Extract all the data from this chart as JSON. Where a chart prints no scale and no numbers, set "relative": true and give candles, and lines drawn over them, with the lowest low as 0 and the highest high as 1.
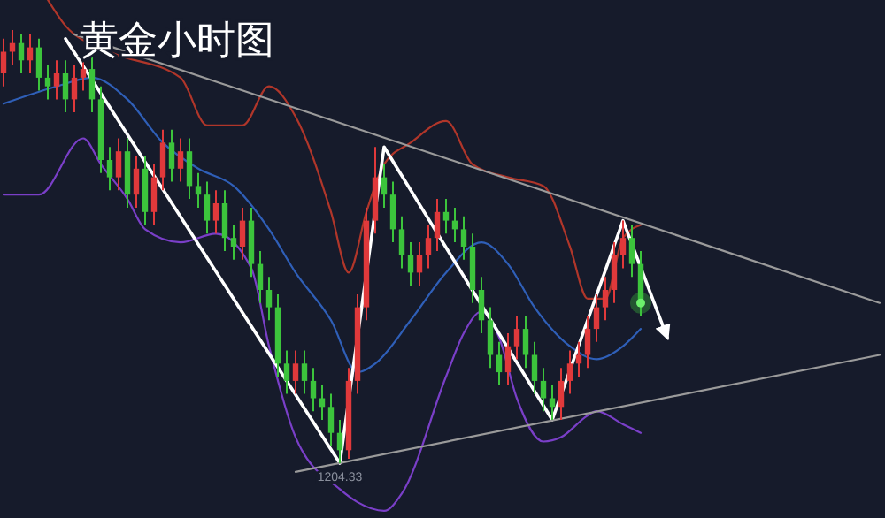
{
  "chart_data": {
    "type": "candlestick",
    "title": "黄金小时图",
    "relative": true,
    "categories": [
      null,
      null,
      null,
      null,
      null,
      null,
      null,
      null,
      null,
      null,
      null,
      null,
      null,
      null,
      null,
      null,
      null,
      null,
      null,
      null,
      null,
      null,
      null,
      null,
      null,
      null,
      null,
      null,
      null,
      null,
      null,
      null,
      null,
      null,
      null,
      null,
      null,
      null,
      null,
      null,
      null,
      null,
      null,
      null,
      null,
      null,
      null,
      null,
      null,
      null,
      null,
      null,
      null,
      null,
      null,
      null,
      null,
      null,
      null,
      null,
      null,
      null,
      null,
      null,
      null,
      null,
      null,
      null,
      null,
      null,
      null,
      null,
      null,
      null,
      null,
      null,
      null,
      null,
      null,
      null,
      null,
      null,
      null,
      null,
      null,
      null,
      null,
      null,
      null,
      null,
      null,
      null,
      null,
      null,
      null,
      null,
      null,
      null,
      null,
      null
    ],
    "ohlc": [
      [
        0.9,
        0.98,
        0.87,
        0.95
      ],
      [
        0.95,
        1.0,
        0.92,
        0.97
      ],
      [
        0.97,
        0.99,
        0.9,
        0.93
      ],
      [
        0.93,
        0.99,
        0.9,
        0.96
      ],
      [
        0.96,
        0.98,
        0.86,
        0.89
      ],
      [
        0.89,
        0.92,
        0.84,
        0.87
      ],
      [
        0.87,
        0.93,
        0.84,
        0.9
      ],
      [
        0.9,
        0.93,
        0.81,
        0.84
      ],
      [
        0.84,
        0.92,
        0.81,
        0.89
      ],
      [
        0.89,
        0.94,
        0.86,
        0.91
      ],
      [
        0.91,
        0.94,
        0.81,
        0.84
      ],
      [
        0.84,
        0.87,
        0.67,
        0.7
      ],
      [
        0.7,
        0.73,
        0.63,
        0.66
      ],
      [
        0.66,
        0.75,
        0.63,
        0.72
      ],
      [
        0.72,
        0.75,
        0.59,
        0.62
      ],
      [
        0.62,
        0.71,
        0.59,
        0.68
      ],
      [
        0.68,
        0.71,
        0.55,
        0.58
      ],
      [
        0.58,
        0.69,
        0.55,
        0.66
      ],
      [
        0.66,
        0.77,
        0.63,
        0.74
      ],
      [
        0.74,
        0.77,
        0.65,
        0.68
      ],
      [
        0.68,
        0.75,
        0.65,
        0.72
      ],
      [
        0.72,
        0.75,
        0.61,
        0.64
      ],
      [
        0.64,
        0.67,
        0.59,
        0.62
      ],
      [
        0.62,
        0.65,
        0.53,
        0.56
      ],
      [
        0.56,
        0.63,
        0.53,
        0.6
      ],
      [
        0.6,
        0.63,
        0.49,
        0.52
      ],
      [
        0.52,
        0.55,
        0.47,
        0.5
      ],
      [
        0.5,
        0.59,
        0.47,
        0.56
      ],
      [
        0.56,
        0.59,
        0.43,
        0.46
      ],
      [
        0.46,
        0.49,
        0.37,
        0.4
      ],
      [
        0.4,
        0.43,
        0.33,
        0.36
      ],
      [
        0.36,
        0.39,
        0.2,
        0.23
      ],
      [
        0.23,
        0.26,
        0.16,
        0.19
      ],
      [
        0.19,
        0.26,
        0.16,
        0.23
      ],
      [
        0.23,
        0.26,
        0.16,
        0.19
      ],
      [
        0.19,
        0.22,
        0.12,
        0.15
      ],
      [
        0.15,
        0.18,
        0.1,
        0.13
      ],
      [
        0.13,
        0.16,
        0.04,
        0.07
      ],
      [
        0.07,
        0.1,
        0.0,
        0.03
      ],
      [
        0.03,
        0.22,
        0.01,
        0.19
      ],
      [
        0.19,
        0.39,
        0.16,
        0.36
      ],
      [
        0.36,
        0.59,
        0.33,
        0.56
      ],
      [
        0.56,
        0.73,
        0.53,
        0.66
      ],
      [
        0.66,
        0.69,
        0.59,
        0.62
      ],
      [
        0.62,
        0.65,
        0.51,
        0.54
      ],
      [
        0.54,
        0.57,
        0.45,
        0.48
      ],
      [
        0.48,
        0.51,
        0.41,
        0.44
      ],
      [
        0.44,
        0.51,
        0.41,
        0.48
      ],
      [
        0.48,
        0.55,
        0.45,
        0.52
      ],
      [
        0.52,
        0.61,
        0.49,
        0.58
      ],
      [
        0.58,
        0.61,
        0.53,
        0.56
      ],
      [
        0.56,
        0.59,
        0.51,
        0.54
      ],
      [
        0.54,
        0.57,
        0.47,
        0.5
      ],
      [
        0.5,
        0.53,
        0.37,
        0.4
      ],
      [
        0.4,
        0.43,
        0.3,
        0.33
      ],
      [
        0.33,
        0.36,
        0.22,
        0.25
      ],
      [
        0.25,
        0.28,
        0.18,
        0.21
      ],
      [
        0.21,
        0.3,
        0.18,
        0.27
      ],
      [
        0.27,
        0.34,
        0.24,
        0.31
      ],
      [
        0.31,
        0.34,
        0.22,
        0.25
      ],
      [
        0.25,
        0.28,
        0.16,
        0.19
      ],
      [
        0.19,
        0.22,
        0.12,
        0.15
      ],
      [
        0.15,
        0.18,
        0.1,
        0.13
      ],
      [
        0.13,
        0.22,
        0.1,
        0.19
      ],
      [
        0.19,
        0.26,
        0.16,
        0.23
      ],
      [
        0.23,
        0.28,
        0.2,
        0.25
      ],
      [
        0.25,
        0.34,
        0.22,
        0.31
      ],
      [
        0.31,
        0.39,
        0.28,
        0.36
      ],
      [
        0.36,
        0.43,
        0.33,
        0.4
      ],
      [
        0.4,
        0.51,
        0.37,
        0.48
      ],
      [
        0.48,
        0.56,
        0.45,
        0.52
      ],
      [
        0.52,
        0.55,
        0.43,
        0.46
      ],
      [
        0.46,
        0.49,
        0.34,
        0.37
      ],
      null,
      null,
      null,
      null,
      null,
      null,
      null,
      null,
      null,
      null,
      null,
      null,
      null,
      null,
      null,
      null,
      null,
      null,
      null,
      null,
      null,
      null,
      null,
      null,
      null,
      null,
      null
    ],
    "series": [
      {
        "type": "line",
        "color": "#b0362a",
        "values": [
          null,
          null,
          null,
          null,
          null,
          1.07,
          null,
          1.01,
          null,
          null,
          null,
          null,
          0.95,
          null,
          null,
          null,
          null,
          null,
          null,
          null,
          0.89,
          null,
          null,
          0.78,
          null,
          null,
          null,
          0.78,
          null,
          null,
          0.87,
          null,
          null,
          0.8,
          null,
          null,
          null,
          0.58,
          null,
          0.44,
          null,
          0.58,
          null,
          0.69,
          null,
          null,
          0.74,
          null,
          null,
          null,
          0.79,
          null,
          null,
          0.69,
          null,
          null,
          null,
          0.66,
          null,
          null,
          null,
          0.64,
          null,
          null,
          0.5,
          null,
          0.38,
          null,
          0.38,
          null,
          0.52,
          null,
          0.55,
          null,
          null,
          null,
          null,
          null,
          null,
          null,
          null,
          null,
          null,
          null,
          null,
          null,
          null,
          null,
          null,
          null,
          null,
          null,
          null,
          null,
          null,
          null,
          null,
          null,
          null,
          null
        ]
      },
      {
        "type": "line",
        "color": "#2f5fb8",
        "values": [
          0.83,
          null,
          null,
          null,
          null,
          null,
          0.87,
          null,
          null,
          null,
          0.89,
          null,
          null,
          null,
          0.84,
          null,
          null,
          null,
          0.74,
          null,
          null,
          null,
          0.68,
          null,
          null,
          null,
          0.64,
          null,
          null,
          null,
          0.54,
          null,
          null,
          0.44,
          null,
          null,
          null,
          0.33,
          null,
          null,
          0.21,
          null,
          0.23,
          null,
          null,
          null,
          0.33,
          null,
          null,
          null,
          0.44,
          null,
          null,
          null,
          0.51,
          null,
          null,
          0.46,
          null,
          null,
          0.36,
          null,
          null,
          null,
          0.27,
          null,
          null,
          0.24,
          null,
          null,
          0.27,
          null,
          0.31,
          null,
          null,
          null,
          null,
          null,
          null,
          null,
          null,
          null,
          null,
          null,
          null,
          null,
          null,
          null,
          null,
          null,
          null,
          null,
          null,
          null,
          null,
          null,
          null,
          null,
          null,
          null
        ]
      },
      {
        "type": "line",
        "color": "#7a3fc8",
        "values": [
          0.62,
          null,
          null,
          null,
          0.62,
          null,
          null,
          null,
          null,
          0.75,
          null,
          0.69,
          null,
          null,
          0.61,
          null,
          0.54,
          null,
          null,
          null,
          0.51,
          null,
          null,
          null,
          0.53,
          null,
          null,
          null,
          0.45,
          null,
          0.27,
          null,
          null,
          0.06,
          null,
          null,
          null,
          null,
          -0.06,
          null,
          -0.09,
          null,
          null,
          -0.11,
          null,
          -0.07,
          null,
          null,
          null,
          null,
          0.2,
          null,
          0.3,
          null,
          0.35,
          null,
          0.29,
          null,
          0.15,
          null,
          null,
          0.05,
          null,
          0.06,
          null,
          null,
          0.11,
          0.12,
          null,
          null,
          0.09,
          null,
          0.07,
          null,
          null,
          null,
          null,
          null,
          null,
          null,
          null,
          null,
          null,
          null,
          null,
          null,
          null,
          null,
          null,
          null,
          null,
          null,
          null,
          null,
          null,
          null,
          null,
          null,
          null,
          null
        ]
      },
      {
        "type": "line",
        "color": "#ffffff",
        "values": [
          null,
          null,
          null,
          null,
          null,
          null,
          null,
          0.98,
          null,
          null,
          null,
          null,
          null,
          null,
          null,
          null,
          null,
          null,
          null,
          null,
          null,
          null,
          null,
          null,
          null,
          null,
          null,
          null,
          null,
          null,
          null,
          null,
          null,
          null,
          null,
          null,
          null,
          null,
          0.0,
          null,
          null,
          null,
          null,
          0.73,
          null,
          null,
          null,
          null,
          null,
          null,
          null,
          null,
          null,
          null,
          null,
          null,
          null,
          null,
          null,
          null,
          null,
          null,
          0.1,
          null,
          null,
          null,
          null,
          null,
          null,
          null,
          0.56,
          null,
          null,
          null,
          null,
          0.29,
          null,
          null,
          null,
          null,
          null,
          null,
          null,
          null,
          null,
          null,
          null,
          null,
          null,
          null,
          null,
          null,
          null,
          null,
          null,
          null,
          null,
          null,
          null,
          null
        ]
      },
      {
        "type": "line",
        "color": "#9a9a9a",
        "values": [
          null,
          null,
          null,
          null,
          null,
          null,
          null,
          null,
          0.99,
          null,
          null,
          null,
          null,
          null,
          null,
          null,
          null,
          null,
          null,
          null,
          null,
          null,
          null,
          null,
          null,
          null,
          null,
          null,
          null,
          null,
          null,
          null,
          null,
          null,
          null,
          null,
          null,
          null,
          null,
          null,
          null,
          null,
          null,
          null,
          null,
          null,
          null,
          null,
          null,
          null,
          null,
          null,
          null,
          null,
          null,
          null,
          null,
          null,
          null,
          null,
          null,
          null,
          null,
          null,
          null,
          null,
          null,
          null,
          null,
          null,
          null,
          null,
          null,
          null,
          null,
          null,
          null,
          null,
          null,
          null,
          null,
          null,
          null,
          null,
          null,
          null,
          null,
          null,
          null,
          null,
          null,
          null,
          null,
          null,
          null,
          null,
          null,
          null,
          null,
          0.37
        ]
      },
      {
        "type": "line",
        "color": "#9a9a9a",
        "values": [
          null,
          null,
          null,
          null,
          null,
          null,
          null,
          null,
          null,
          null,
          null,
          null,
          null,
          null,
          null,
          null,
          null,
          null,
          null,
          null,
          null,
          null,
          null,
          null,
          null,
          null,
          null,
          null,
          null,
          null,
          null,
          null,
          null,
          -0.02,
          null,
          null,
          null,
          null,
          null,
          null,
          null,
          null,
          null,
          null,
          null,
          null,
          null,
          null,
          null,
          null,
          null,
          null,
          null,
          null,
          null,
          null,
          null,
          null,
          null,
          null,
          null,
          null,
          null,
          null,
          null,
          null,
          null,
          null,
          null,
          null,
          null,
          null,
          null,
          null,
          null,
          null,
          null,
          null,
          null,
          null,
          null,
          null,
          null,
          null,
          null,
          null,
          null,
          null,
          null,
          null,
          null,
          null,
          null,
          null,
          null,
          null,
          null,
          null,
          null,
          0.25
        ]
      }
    ],
    "annotations": [
      "1204.33"
    ]
  }
}
